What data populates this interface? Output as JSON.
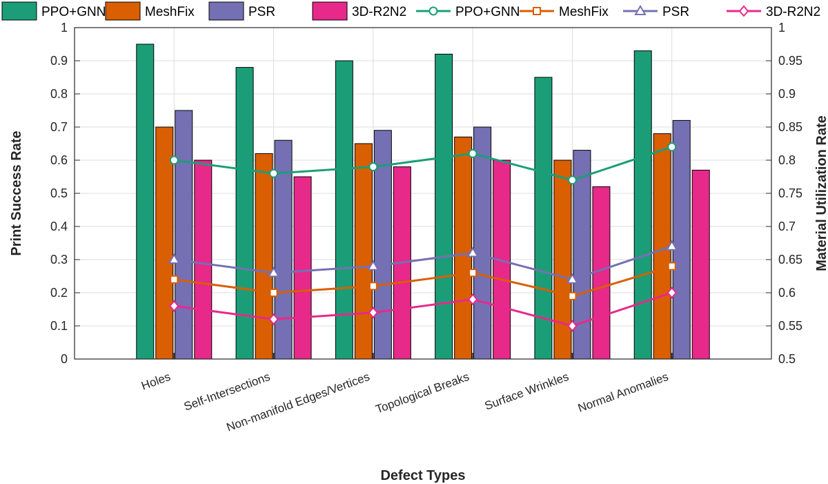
{
  "chart_data": {
    "type": "bar",
    "xlabel": "Defect Types",
    "ylabel_left": "Print Success Rate",
    "ylabel_right": "Material Utilization Rate",
    "ylim_left": [
      0,
      1
    ],
    "ylim_right": [
      0.5,
      1
    ],
    "yticks_left": [
      "0",
      "0.1",
      "0.2",
      "0.3",
      "0.4",
      "0.5",
      "0.6",
      "0.7",
      "0.8",
      "0.9",
      "1"
    ],
    "yticks_right": [
      "0.5",
      "0.55",
      "0.6",
      "0.65",
      "0.7",
      "0.75",
      "0.8",
      "0.85",
      "0.9",
      "0.95",
      "1"
    ],
    "grid": true,
    "categories": [
      "Holes",
      "Self-Intersections",
      "Non-manifold Edges/Vertices",
      "Topological Breaks",
      "Surface Wrinkles",
      "Normal Anomalies"
    ],
    "bar_series": [
      {
        "name": "PPO+GNN",
        "color": "#1b9e77",
        "values": [
          0.95,
          0.88,
          0.9,
          0.92,
          0.85,
          0.93
        ]
      },
      {
        "name": "MeshFix",
        "color": "#d95f02",
        "values": [
          0.7,
          0.62,
          0.65,
          0.67,
          0.6,
          0.68
        ]
      },
      {
        "name": "PSR",
        "color": "#7570b3",
        "values": [
          0.75,
          0.66,
          0.69,
          0.7,
          0.63,
          0.72
        ]
      },
      {
        "name": "3D-R2N2",
        "color": "#e7298a",
        "values": [
          0.6,
          0.55,
          0.58,
          0.6,
          0.52,
          0.57
        ]
      }
    ],
    "line_series": [
      {
        "name": "PPO+GNN",
        "color": "#1b9e77",
        "marker": "circle",
        "values": [
          0.8,
          0.78,
          0.79,
          0.81,
          0.77,
          0.82
        ]
      },
      {
        "name": "MeshFix",
        "color": "#d95f02",
        "marker": "square",
        "values": [
          0.62,
          0.6,
          0.61,
          0.63,
          0.595,
          0.64
        ]
      },
      {
        "name": "PSR",
        "color": "#7570b3",
        "marker": "triangle",
        "values": [
          0.65,
          0.63,
          0.64,
          0.66,
          0.62,
          0.67
        ]
      },
      {
        "name": "3D-R2N2",
        "color": "#e7298a",
        "marker": "diamond",
        "values": [
          0.58,
          0.56,
          0.57,
          0.59,
          0.55,
          0.6
        ]
      }
    ],
    "legend_position": "top"
  }
}
